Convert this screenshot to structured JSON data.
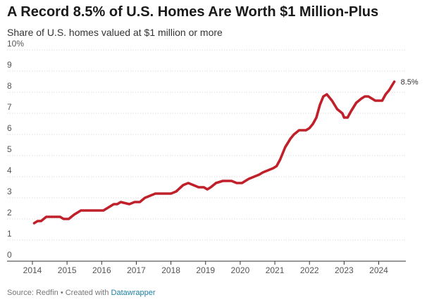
{
  "chart_data": {
    "type": "line",
    "title": "A Record 8.5% of U.S. Homes Are Worth $1 Million-Plus",
    "subtitle": "Share of U.S. homes valued at $1 million or more",
    "ylim": [
      0,
      10
    ],
    "xlim": [
      2014,
      2024.6
    ],
    "y_ticks": [
      "0",
      "1",
      "2",
      "3",
      "4",
      "5",
      "6",
      "7",
      "8",
      "9",
      "10%"
    ],
    "x_ticks": [
      "2014",
      "2015",
      "2016",
      "2017",
      "2018",
      "2019",
      "2020",
      "2021",
      "2022",
      "2023",
      "2024"
    ],
    "grid": true,
    "series": [
      {
        "color": "#c0202a",
        "end_label": "8.5%",
        "x": [
          2014.05,
          2014.15,
          2014.25,
          2014.4,
          2014.6,
          2014.8,
          2014.9,
          2015.05,
          2015.2,
          2015.4,
          2015.6,
          2015.8,
          2016.05,
          2016.25,
          2016.35,
          2016.45,
          2016.55,
          2016.8,
          2016.95,
          2017.1,
          2017.25,
          2017.4,
          2017.55,
          2017.8,
          2018.0,
          2018.15,
          2018.35,
          2018.5,
          2018.65,
          2018.8,
          2018.95,
          2019.05,
          2019.15,
          2019.3,
          2019.5,
          2019.65,
          2019.75,
          2019.9,
          2020.05,
          2020.25,
          2020.4,
          2020.55,
          2020.65,
          2020.8,
          2020.95,
          2021.05,
          2021.15,
          2021.3,
          2021.45,
          2021.55,
          2021.7,
          2021.9,
          2022.0,
          2022.1,
          2022.2,
          2022.3,
          2022.4,
          2022.5,
          2022.65,
          2022.8,
          2022.95,
          2023.0,
          2023.1,
          2023.2,
          2023.35,
          2023.5,
          2023.6,
          2023.7,
          2023.8,
          2023.9,
          2024.0,
          2024.1,
          2024.2,
          2024.3,
          2024.45
        ],
        "values": [
          1.8,
          1.9,
          1.9,
          2.1,
          2.1,
          2.1,
          2.0,
          2.0,
          2.2,
          2.4,
          2.4,
          2.4,
          2.4,
          2.6,
          2.7,
          2.7,
          2.8,
          2.7,
          2.8,
          2.8,
          3.0,
          3.1,
          3.2,
          3.2,
          3.2,
          3.3,
          3.6,
          3.7,
          3.6,
          3.5,
          3.5,
          3.4,
          3.5,
          3.7,
          3.8,
          3.8,
          3.8,
          3.7,
          3.7,
          3.9,
          4.0,
          4.1,
          4.2,
          4.3,
          4.4,
          4.5,
          4.8,
          5.4,
          5.8,
          6.0,
          6.2,
          6.2,
          6.3,
          6.5,
          6.8,
          7.4,
          7.8,
          7.9,
          7.6,
          7.2,
          7.0,
          6.8,
          6.8,
          7.1,
          7.5,
          7.7,
          7.8,
          7.8,
          7.7,
          7.6,
          7.6,
          7.6,
          7.9,
          8.1,
          8.5
        ]
      }
    ]
  },
  "footer": {
    "source": "Source: Redfin • Created with ",
    "tool": "Datawrapper"
  }
}
